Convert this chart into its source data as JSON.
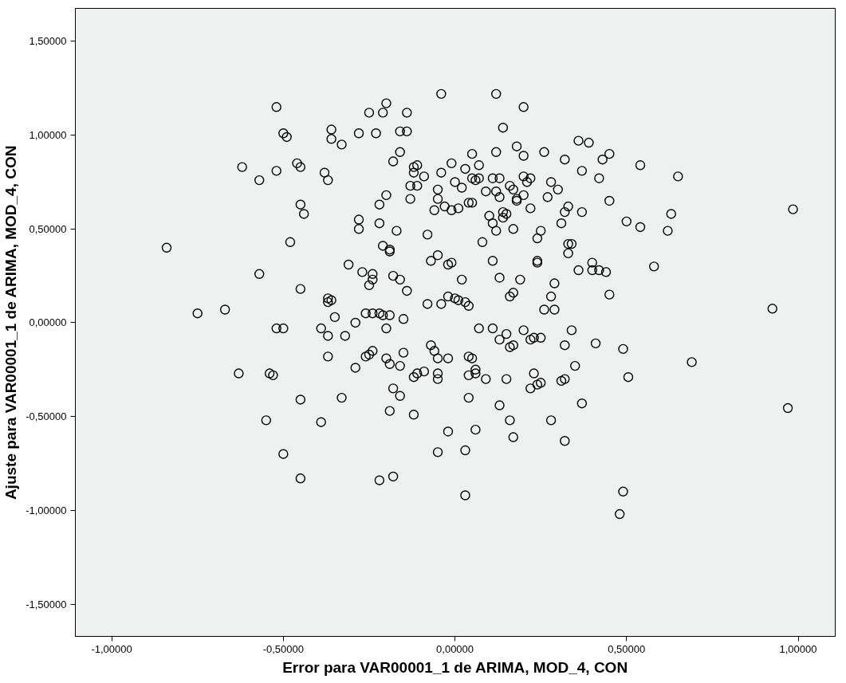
{
  "chart_data": {
    "type": "scatter",
    "xlabel": "Error para VAR00001_1 de ARIMA, MOD_4, CON",
    "ylabel": "Ajuste para VAR00001_1 de ARIMA, MOD_4, CON",
    "xlim": [
      -1.106,
      1.108
    ],
    "ylim": [
      -1.672,
      1.676
    ],
    "xticks": [
      {
        "value": -1,
        "label": "-1,00000"
      },
      {
        "value": -0.5,
        "label": "-0,50000"
      },
      {
        "value": 0,
        "label": "0,00000"
      },
      {
        "value": 0.5,
        "label": "0,50000"
      },
      {
        "value": 1,
        "label": "1,00000"
      }
    ],
    "yticks": [
      {
        "value": -1.5,
        "label": "-1,50000"
      },
      {
        "value": -1,
        "label": "-1,00000"
      },
      {
        "value": -0.5,
        "label": "-0,50000"
      },
      {
        "value": 0,
        "label": "0,00000"
      },
      {
        "value": 0.5,
        "label": "0,50000"
      },
      {
        "value": 1,
        "label": "1,00000"
      },
      {
        "value": 1.5,
        "label": "1,50000"
      }
    ],
    "grid": false,
    "marker": "circle",
    "series": [
      {
        "color": "#000000",
        "x": [
          -0.52,
          -0.5,
          -0.49,
          -0.36,
          -0.36,
          -0.33,
          -0.28,
          -0.25,
          -0.23,
          -0.21,
          -0.2,
          -0.14,
          -0.16,
          -0.14,
          -0.04,
          0.12,
          0.14,
          0.2,
          -0.16,
          0.05,
          0.12,
          0.18,
          0.26,
          0.36,
          0.39,
          0.45,
          0.43,
          -0.62,
          -0.52,
          -0.45,
          -0.46,
          -0.38,
          -0.37,
          -0.57,
          -0.18,
          -0.12,
          -0.11,
          -0.12,
          -0.09,
          -0.13,
          -0.13,
          -0.11,
          -0.04,
          -0.01,
          0.03,
          0.0,
          -0.05,
          0.02,
          0.05,
          0.06,
          0.07,
          0.11,
          0.13,
          0.16,
          0.17,
          0.2,
          0.21,
          0.18,
          0.22,
          0.28,
          0.3,
          0.32,
          0.37,
          0.42,
          0.54,
          0.65,
          0.07,
          0.12,
          0.2,
          -0.45,
          -0.44,
          -0.48,
          -0.28,
          -0.28,
          -0.22,
          -0.22,
          -0.2,
          -0.17,
          -0.21,
          -0.19,
          -0.19,
          -0.08,
          -0.05,
          -0.06,
          -0.03,
          -0.01,
          0.01,
          0.04,
          0.05,
          0.09,
          0.1,
          0.12,
          0.11,
          0.13,
          0.14,
          0.15,
          0.17,
          0.18,
          0.2,
          0.22,
          0.24,
          0.25,
          0.27,
          0.31,
          0.32,
          0.33,
          0.37,
          0.45,
          0.5,
          0.54,
          0.62,
          0.63,
          0.985,
          0.08,
          0.14,
          0.33,
          -0.84,
          -0.57,
          -0.45,
          -0.37,
          -0.37,
          -0.36,
          -0.35,
          -0.31,
          -0.27,
          -0.25,
          -0.24,
          -0.24,
          -0.18,
          -0.16,
          -0.14,
          -0.08,
          -0.07,
          -0.05,
          -0.04,
          -0.02,
          -0.01,
          -0.02,
          0.0,
          0.01,
          0.02,
          0.03,
          0.04,
          0.11,
          0.13,
          0.16,
          0.17,
          0.19,
          0.24,
          0.24,
          0.28,
          0.29,
          0.33,
          0.34,
          0.36,
          0.4,
          0.42,
          0.4,
          0.44,
          0.45,
          0.58,
          0.29,
          -0.75,
          -0.67,
          -0.52,
          -0.5,
          -0.39,
          -0.37,
          -0.37,
          -0.32,
          -0.29,
          -0.26,
          -0.24,
          -0.22,
          -0.21,
          -0.2,
          -0.19,
          -0.15,
          -0.24,
          -0.25,
          -0.26,
          -0.29,
          -0.2,
          -0.19,
          -0.15,
          -0.11,
          -0.09,
          -0.07,
          -0.06,
          -0.05,
          -0.02,
          0.04,
          0.05,
          0.07,
          0.11,
          0.13,
          0.15,
          0.16,
          0.17,
          0.2,
          0.22,
          0.23,
          0.25,
          0.26,
          0.32,
          0.34,
          0.41,
          0.49,
          0.69,
          0.925,
          0.06,
          -0.63,
          -0.54,
          -0.53,
          -0.55,
          -0.45,
          -0.5,
          -0.45,
          -0.39,
          -0.33,
          -0.16,
          -0.18,
          -0.16,
          -0.19,
          -0.12,
          -0.12,
          -0.05,
          -0.05,
          -0.02,
          -0.05,
          0.04,
          0.04,
          0.06,
          0.09,
          0.13,
          0.15,
          0.16,
          0.17,
          0.06,
          0.03,
          0.03,
          -0.22,
          -0.18,
          0.22,
          0.23,
          0.25,
          0.31,
          0.32,
          0.32,
          0.28,
          0.35,
          0.37,
          0.505,
          0.97,
          0.49,
          0.48,
          0.24
        ],
        "values": [
          1.15,
          1.01,
          0.99,
          1.03,
          0.98,
          0.95,
          1.01,
          1.12,
          1.01,
          1.12,
          1.17,
          1.12,
          1.02,
          1.02,
          1.22,
          1.22,
          1.04,
          1.15,
          0.91,
          0.9,
          0.91,
          0.94,
          0.91,
          0.97,
          0.96,
          0.9,
          0.87,
          0.83,
          0.81,
          0.83,
          0.85,
          0.8,
          0.76,
          0.76,
          0.86,
          0.83,
          0.84,
          0.8,
          0.78,
          0.73,
          0.66,
          0.73,
          0.8,
          0.85,
          0.82,
          0.75,
          0.71,
          0.72,
          0.77,
          0.76,
          0.77,
          0.77,
          0.77,
          0.73,
          0.71,
          0.78,
          0.75,
          0.66,
          0.77,
          0.75,
          0.71,
          0.87,
          0.81,
          0.77,
          0.84,
          0.78,
          0.84,
          0.7,
          0.89,
          0.63,
          0.58,
          0.43,
          0.55,
          0.5,
          0.63,
          0.53,
          0.68,
          0.49,
          0.41,
          0.38,
          0.39,
          0.47,
          0.66,
          0.6,
          0.62,
          0.6,
          0.61,
          0.64,
          0.64,
          0.7,
          0.57,
          0.49,
          0.53,
          0.67,
          0.56,
          0.58,
          0.5,
          0.65,
          0.68,
          0.61,
          0.45,
          0.49,
          0.67,
          0.53,
          0.59,
          0.62,
          0.59,
          0.65,
          0.54,
          0.51,
          0.49,
          0.58,
          0.605,
          0.43,
          0.59,
          0.42,
          0.4,
          0.26,
          0.18,
          0.13,
          0.11,
          0.12,
          0.03,
          0.31,
          0.27,
          0.2,
          0.23,
          0.26,
          0.25,
          0.23,
          0.17,
          0.1,
          0.33,
          0.36,
          0.1,
          0.31,
          0.32,
          0.14,
          0.13,
          0.12,
          0.23,
          0.11,
          0.09,
          0.33,
          0.24,
          0.14,
          0.16,
          0.23,
          0.32,
          0.33,
          0.14,
          0.21,
          0.37,
          0.42,
          0.28,
          0.32,
          0.28,
          0.28,
          0.27,
          0.15,
          0.3,
          0.07,
          0.05,
          0.07,
          -0.03,
          -0.03,
          -0.03,
          -0.07,
          -0.18,
          -0.07,
          0.0,
          0.05,
          0.05,
          0.05,
          0.04,
          -0.03,
          0.04,
          0.02,
          -0.15,
          -0.17,
          -0.18,
          -0.24,
          -0.19,
          -0.22,
          -0.16,
          -0.27,
          -0.26,
          -0.12,
          -0.15,
          -0.19,
          -0.19,
          -0.18,
          -0.19,
          -0.03,
          -0.03,
          -0.09,
          -0.06,
          -0.13,
          -0.12,
          -0.04,
          -0.09,
          -0.08,
          -0.08,
          0.07,
          -0.12,
          -0.04,
          -0.11,
          -0.14,
          -0.21,
          0.075,
          -0.27,
          -0.27,
          -0.27,
          -0.28,
          -0.52,
          -0.41,
          -0.7,
          -0.83,
          -0.53,
          -0.4,
          -0.23,
          -0.35,
          -0.39,
          -0.47,
          -0.29,
          -0.49,
          -0.27,
          -0.3,
          -0.58,
          -0.69,
          -0.28,
          -0.4,
          -0.25,
          -0.3,
          -0.44,
          -0.3,
          -0.52,
          -0.61,
          -0.57,
          -0.68,
          -0.92,
          -0.84,
          -0.82,
          -0.35,
          -0.27,
          -0.32,
          -0.31,
          -0.3,
          -0.63,
          -0.52,
          -0.23,
          -0.43,
          -0.29,
          -0.455,
          -0.9,
          -1.02,
          -0.33
        ]
      }
    ]
  }
}
